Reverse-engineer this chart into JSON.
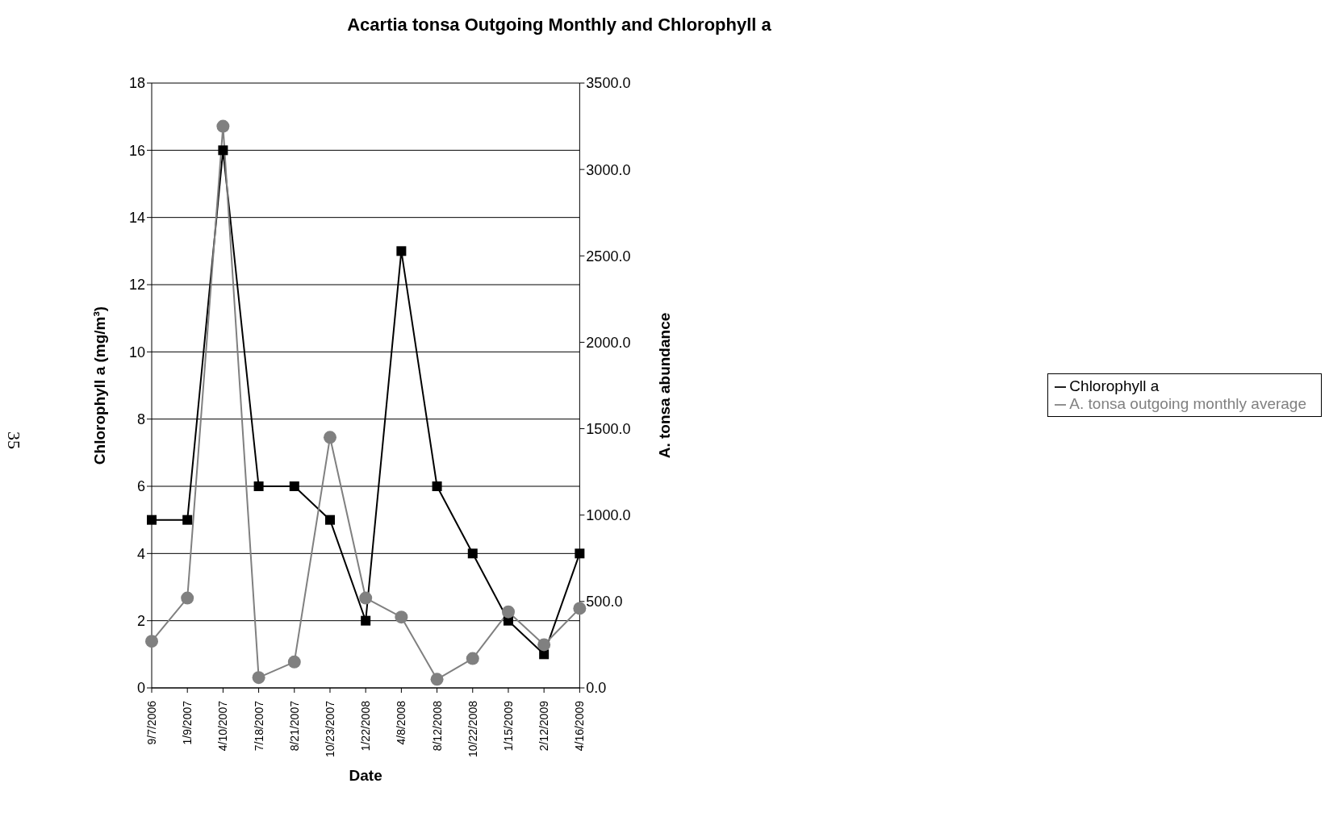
{
  "chart_data": {
    "type": "line",
    "title": "Acartia tonsa  Outgoing Monthly and Chlorophyll a",
    "xlabel": "Date",
    "ylabel": "Chlorophyll a  (mg/m³)",
    "y2label": "A. tonsa  abundance",
    "categories": [
      "9/7/2006",
      "1/9/2007",
      "4/10/2007",
      "7/18/2007",
      "8/21/2007",
      "10/23/2007",
      "1/22/2008",
      "4/8/2008",
      "8/12/2008",
      "10/22/2008",
      "1/15/2009",
      "2/12/2009",
      "4/16/2009"
    ],
    "series": [
      {
        "name": "Chlorophyll a",
        "color": "#000000",
        "marker": "square",
        "values": [
          5,
          5,
          16,
          6,
          6,
          5,
          2,
          13,
          6,
          4,
          2,
          1,
          4
        ]
      },
      {
        "name": "A. tonsa outgoing monthly average",
        "color": "#808080",
        "marker": "circle",
        "axis": "y2",
        "values": [
          270,
          520,
          3250,
          60,
          150,
          1450,
          520,
          410,
          50,
          170,
          440,
          250,
          460
        ]
      }
    ],
    "ylim": [
      0,
      18
    ],
    "yticks": [
      0,
      2,
      4,
      6,
      8,
      10,
      12,
      14,
      16,
      18
    ],
    "y2lim": [
      0,
      3500
    ],
    "y2ticks": [
      {
        "value": 0,
        "label": "0.0"
      },
      {
        "value": 500,
        "label": "500.0"
      },
      {
        "value": 1000,
        "label": "1000.0"
      },
      {
        "value": 1500,
        "label": "1500.0"
      },
      {
        "value": 2000,
        "label": "2000.0"
      },
      {
        "value": 2500,
        "label": "2500.0"
      },
      {
        "value": 3000,
        "label": "3000.0"
      },
      {
        "value": 3500,
        "label": "3500.0"
      }
    ],
    "grid": "y",
    "legend": "right",
    "annotations": [
      "35"
    ]
  }
}
